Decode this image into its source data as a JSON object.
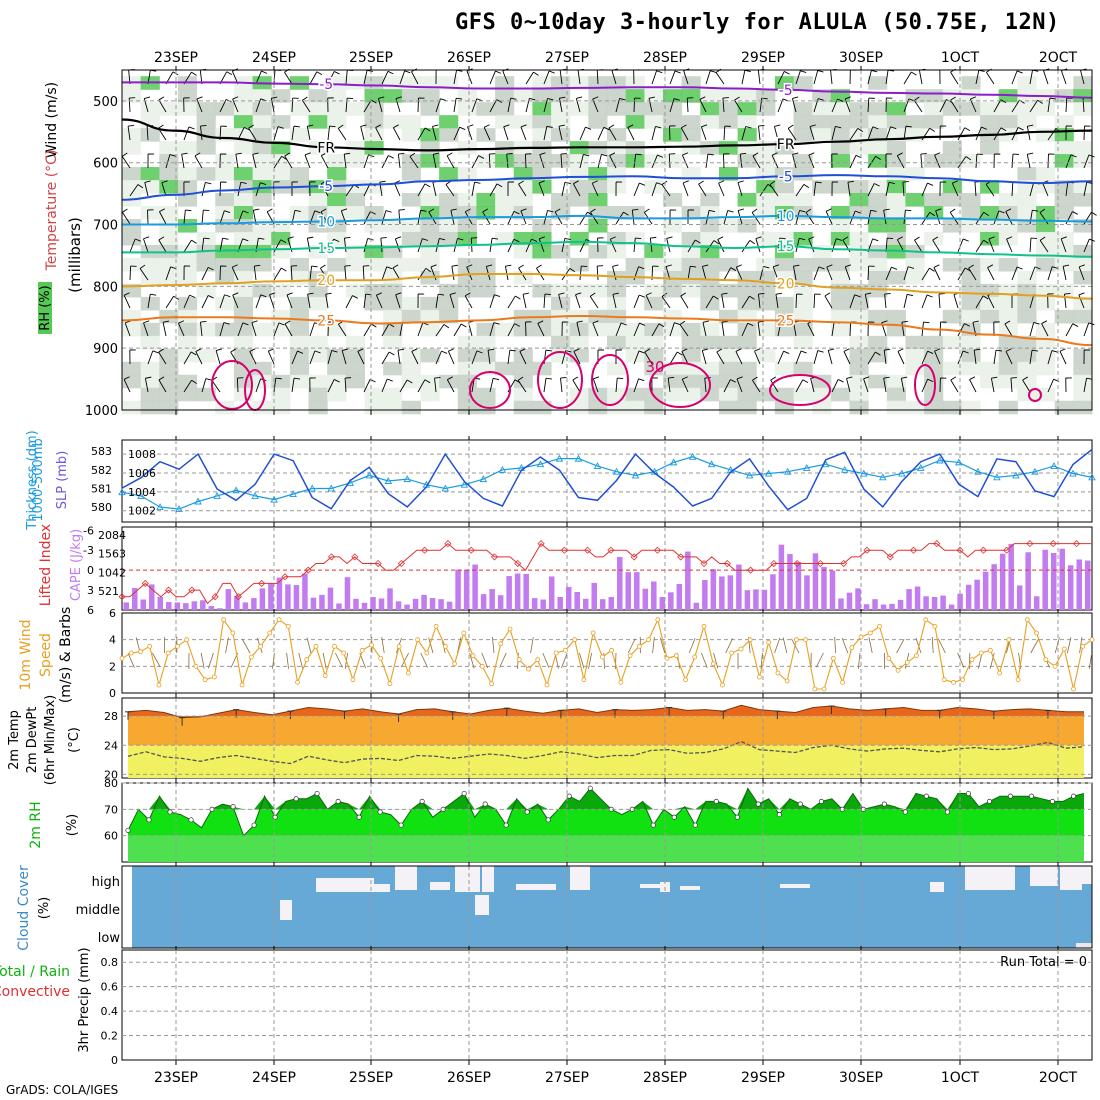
{
  "title": "GFS 0~10day 3-hourly for ALULA (50.75E, 12N)",
  "footer": "GrADS: COLA/IGES",
  "colors": {
    "pink": "#d6006e",
    "purple": "#8a1fc8",
    "blue": "#1f4fd6",
    "lightblue": "#1a9be0",
    "teal": "#12c08c",
    "gold": "#e0a020",
    "orange": "#ec7a1c",
    "grayshade": "#c4cfc4",
    "lightshade": "#e8f0e6",
    "green": "#56c856",
    "cloud": "#66a9d6",
    "rhgreen": "#11e011",
    "rhdark": "#0aa80a",
    "cape": "#c27cf0",
    "li": "#e03030",
    "wind": "#e8a020"
  },
  "chart_data": [
    {
      "type": "heatmap",
      "name": "pressure-time-cross-section",
      "xlabels": [
        "23SEP",
        "24SEP",
        "25SEP",
        "26SEP",
        "27SEP",
        "28SEP",
        "29SEP",
        "30SEP",
        "1OCT",
        "2OCT"
      ],
      "xlabels_display": [
        "23SEP",
        "24SEP",
        "25SEP",
        "26SEP",
        "27SEP",
        "28SEP",
        "29SEP",
        "30SEP",
        "1OCT",
        "2OCT"
      ],
      "ylabel_parts": {
        "wind": "Wind (m/s)",
        "temp": "Temperature (°C)",
        "units": "(millibars)",
        "rh": "RH (%)"
      },
      "yticks": [
        "500",
        "600",
        "700",
        "800",
        "900",
        "1000"
      ],
      "ylim": [
        450,
        1000
      ],
      "contours": [
        {
          "label": "-5",
          "color": "purple",
          "levels": [
            470,
            470,
            470,
            472,
            473,
            475,
            478,
            480,
            480,
            479,
            478,
            478,
            480,
            482,
            485,
            487,
            488,
            490,
            492,
            495
          ]
        },
        {
          "label": "FR",
          "color": "black",
          "levels": [
            530,
            548,
            560,
            568,
            575,
            578,
            580,
            578,
            576,
            575,
            575,
            574,
            572,
            570,
            566,
            562,
            558,
            555,
            550,
            548
          ]
        },
        {
          "label": "-5",
          "color": "blue",
          "levels": [
            660,
            652,
            645,
            640,
            638,
            635,
            630,
            628,
            625,
            623,
            622,
            625,
            625,
            622,
            620,
            622,
            625,
            630,
            633,
            630
          ]
        },
        {
          "label": "10",
          "color": "lightblue",
          "levels": [
            700,
            700,
            698,
            696,
            695,
            693,
            690,
            688,
            688,
            686,
            690,
            690,
            688,
            686,
            688,
            690,
            690,
            692,
            694,
            695
          ]
        },
        {
          "label": "15",
          "color": "teal",
          "levels": [
            745,
            745,
            742,
            740,
            738,
            737,
            735,
            733,
            730,
            728,
            730,
            735,
            738,
            735,
            740,
            742,
            745,
            748,
            750,
            752
          ]
        },
        {
          "label": "20",
          "color": "gold",
          "levels": [
            800,
            798,
            795,
            792,
            790,
            790,
            785,
            780,
            780,
            782,
            785,
            788,
            790,
            795,
            802,
            805,
            810,
            812,
            815,
            820
          ]
        },
        {
          "label": "25",
          "color": "orange",
          "levels": [
            855,
            850,
            850,
            852,
            855,
            860,
            858,
            855,
            850,
            848,
            850,
            852,
            855,
            855,
            858,
            862,
            870,
            878,
            885,
            895
          ]
        },
        {
          "label": "30",
          "color": "pink",
          "levels": []
        }
      ]
    },
    {
      "type": "line",
      "name": "slp-thickness",
      "ylabel_left": "Thickness (dm)",
      "ylabel_right": "SLP (mb)",
      "ylabel_top": "1000-500mb",
      "thickness_ticks": [
        "583",
        "582",
        "581",
        "580"
      ],
      "slp_ticks": [
        "1008",
        "1006",
        "1004",
        "1002"
      ],
      "series": [
        {
          "name": "SLP",
          "color": "blue",
          "values": [
            1004.4,
            1005.5,
            1007.2,
            1006.4,
            1008,
            1004.3,
            1003.1,
            1004.8,
            1008,
            1007.3,
            1003.4,
            1002.2,
            1005.2,
            1006.6,
            1003.8,
            1002.4,
            1004.5,
            1008,
            1005.1,
            1003.3,
            1002.5,
            1006.3,
            1007.7,
            1006.3,
            1003.4,
            1003.1,
            1005.2,
            1008,
            1006,
            1004.5,
            1002.5,
            1003.3,
            1006.1,
            1007.5,
            1004.6,
            1002.1,
            1003.3,
            1007.4,
            1008.2,
            1004.3,
            1002.4,
            1005.1,
            1007.2,
            1008,
            1004.8,
            1003.5,
            1007.5,
            1007.2,
            1004.1,
            1003.5,
            1006.9,
            1008.5
          ]
        },
        {
          "name": "Thickness",
          "color": "lightblue",
          "values": [
            580.8,
            580.6,
            580.0,
            579.9,
            580.3,
            580.6,
            580.9,
            580.6,
            580.4,
            580.7,
            581.0,
            581.0,
            581.3,
            581.7,
            581.4,
            581.5,
            581.2,
            581.0,
            581.2,
            581.5,
            582.0,
            582.1,
            582.3,
            582.6,
            582.6,
            582.2,
            581.9,
            581.7,
            581.9,
            582.4,
            582.7,
            582.3,
            582.0,
            581.7,
            581.8,
            581.9,
            582.1,
            582.3,
            582.0,
            581.8,
            581.6,
            581.8,
            582.1,
            582.5,
            582.4,
            581.9,
            581.6,
            581.7,
            581.9,
            582.2,
            581.8,
            581.6
          ]
        }
      ]
    },
    {
      "type": "bar",
      "name": "cape-lifted-index",
      "ylabel_left": "Lifted Index",
      "ylabel_right": "CAPE (J/kg)",
      "li_ticks": [
        "-6",
        "-3",
        "0",
        "3",
        "6"
      ],
      "cape_ticks": [
        "2084",
        "1563",
        "1042",
        "521"
      ],
      "cape_values": [
        210,
        610,
        290,
        710,
        360,
        220,
        210,
        190,
        240,
        270,
        110,
        50,
        580,
        390,
        210,
        330,
        600,
        730,
        900,
        710,
        690,
        1010,
        340,
        420,
        620,
        180,
        910,
        310,
        200,
        360,
        320,
        600,
        240,
        150,
        310,
        420,
        330,
        300,
        230,
        1120,
        1120,
        1260,
        440,
        580,
        410,
        940,
        1010,
        1000,
        330,
        290,
        930,
        360,
        640,
        500,
        310,
        750,
        300,
        360,
        1470,
        1050,
        1050,
        590,
        790,
        360,
        490,
        720,
        1620,
        200,
        830,
        1130,
        930,
        960,
        1260,
        550,
        570,
        560,
        990,
        1810,
        1550,
        1330,
        960,
        1570,
        1190,
        1090,
        320,
        480,
        600,
        160,
        300,
        150,
        170,
        280,
        580,
        650,
        380,
        360,
        400,
        150,
        450,
        700,
        840,
        1060,
        1270,
        1560,
        1830,
        680,
        1600,
        380,
        1670,
        1580,
        1700,
        1240,
        1400,
        1370
      ],
      "li_values": [
        4,
        4,
        3,
        2,
        3,
        4,
        3,
        4,
        4,
        3,
        3,
        5,
        4,
        2,
        2,
        4,
        3,
        2,
        2,
        2,
        2,
        1,
        1,
        1,
        0,
        -1,
        -1,
        -2,
        -2,
        -1,
        -2,
        -1,
        -1,
        -1,
        0,
        0,
        -1,
        -2,
        -3,
        -3,
        -3,
        -3,
        -4,
        -3,
        -3,
        -3,
        -3,
        -3,
        -2,
        -2,
        -2,
        -1,
        0,
        -2,
        -4,
        -3,
        -3,
        -3,
        -3,
        -3,
        -3,
        -2,
        -2,
        -3,
        -3,
        -3,
        -2,
        -3,
        -3,
        -3,
        -3,
        -3,
        -2,
        -2,
        -2,
        -1,
        -2,
        -1,
        -1,
        0,
        0,
        0,
        0,
        0,
        -1,
        -1,
        -1,
        -1,
        -1,
        -1,
        -1,
        -1,
        -1,
        -1,
        -2,
        -2,
        -3,
        -3,
        -3,
        -2,
        -3,
        -3,
        -3,
        -3,
        -4,
        -4,
        -3,
        -3,
        -3,
        -2,
        -3,
        -3,
        -3,
        -3,
        -3,
        -4,
        -4,
        -4,
        -4,
        -4,
        -4,
        -4,
        -4,
        -4,
        -4,
        -4
      ]
    },
    {
      "type": "line",
      "name": "10m-wind",
      "ylabel": [
        "10m Wind",
        "Speed",
        "(m/s) & Barbs"
      ],
      "yticks": [
        "6",
        "4",
        "2",
        "0"
      ],
      "ylim": [
        0,
        6
      ],
      "values": [
        2.6,
        3.0,
        3.1,
        3.5,
        0.6,
        3.0,
        3.5,
        4.0,
        2.0,
        1.0,
        1.2,
        5.5,
        4.5,
        0.6,
        2.7,
        3.5,
        4.5,
        5.5,
        5.0,
        0.8,
        2.5,
        3.5,
        1.3,
        3.5,
        3.0,
        1.0,
        3.2,
        3.6,
        2.6,
        0.7,
        3.5,
        1.5,
        4.0,
        3.0,
        5.0,
        3.5,
        2.2,
        4.5,
        2.8,
        2.0,
        0.7,
        3.7,
        4.8,
        2.5,
        1.8,
        2.5,
        0.6,
        3.0,
        3.2,
        4.0,
        1.0,
        4.5,
        2.7,
        3.2,
        0.8,
        2.8,
        3.5,
        4.0,
        5.5,
        2.6,
        2.8,
        1.0,
        2.7,
        5.0,
        2.2,
        0.6,
        3.0,
        3.3,
        4.0,
        1.2,
        3.8,
        1.5,
        0.9,
        4.0,
        4.0,
        0.3,
        0.3,
        2.6,
        0.8,
        3.4,
        4.2,
        4.5,
        5.0,
        2.6,
        1.7,
        2.3,
        2.8,
        5.5,
        5.0,
        1.0,
        0.8,
        1.0,
        2.5,
        3.0,
        3.2,
        1.5,
        4.0,
        1.0,
        5.5,
        4.5,
        2.5,
        2.0,
        3.3,
        0.3,
        3.5,
        4.0
      ]
    },
    {
      "type": "area",
      "name": "2m-temperature",
      "ylabel": [
        "2m Temp",
        "2m DewPt",
        "(6hr Min/Max)"
      ],
      "yunit": "(°C)",
      "yticks": [
        "28",
        "24",
        "20"
      ],
      "ylim": [
        19.5,
        30.5
      ],
      "temp": [
        28.6,
        28.8,
        28.5,
        27.8,
        27.9,
        28.4,
        28.9,
        28.5,
        28.2,
        28.7,
        29.2,
        29.0,
        28.7,
        29.0,
        28.6,
        28.3,
        28.9,
        29.0,
        28.6,
        28.3,
        28.8,
        29.1,
        28.7,
        28.4,
        28.8,
        29.0,
        28.5,
        28.9,
        28.8,
        28.9,
        29.2,
        28.8,
        28.9,
        28.7,
        29.5,
        28.9,
        28.7,
        28.5,
        29.2,
        29.4,
        29.0,
        28.8,
        29.0,
        29.2,
        28.8,
        28.8,
        29.2,
        29.0,
        28.7,
        28.9,
        29.0,
        28.8,
        28.6,
        28.6
      ],
      "dewpt": [
        22.5,
        23.1,
        22.4,
        22.2,
        21.8,
        22.3,
        22.6,
        22.2,
        21.8,
        21.5,
        22.5,
        22.0,
        21.6,
        22.1,
        22.2,
        21.9,
        22.6,
        22.5,
        22.2,
        22.5,
        22.8,
        22.6,
        22.2,
        22.6,
        23.1,
        22.8,
        22.3,
        22.6,
        22.6,
        23.3,
        23.4,
        22.9,
        23.0,
        23.5,
        24.5,
        23.4,
        23.2,
        23.0,
        23.7,
        24.0,
        23.5,
        23.2,
        23.5,
        23.6,
        23.3,
        23.1,
        23.5,
        23.7,
        23.4,
        23.5,
        23.9,
        24.4,
        23.6,
        23.8
      ]
    },
    {
      "type": "area",
      "name": "2m-rh",
      "ylabel": "2m RH",
      "yunit": "(%)",
      "yticks": [
        "80",
        "70",
        "60"
      ],
      "ylim": [
        50,
        80
      ],
      "values": [
        62,
        70,
        66,
        75,
        69,
        68,
        66,
        63,
        70,
        72,
        71,
        60,
        64,
        75,
        67,
        73,
        74,
        74,
        76,
        70,
        73,
        72,
        67,
        75,
        69,
        68,
        64,
        70,
        73,
        67,
        70,
        73,
        76,
        67,
        72,
        70,
        64,
        74,
        69,
        72,
        66,
        70,
        75,
        73,
        78,
        74,
        70,
        68,
        70,
        73,
        64,
        70,
        67,
        71,
        64,
        73,
        73,
        72,
        67,
        78,
        72,
        74,
        68,
        74,
        72,
        70,
        73,
        74,
        70,
        76,
        70,
        71,
        72,
        71,
        69,
        76,
        75,
        74,
        69,
        76,
        76,
        71,
        73,
        75,
        75,
        75,
        75,
        74,
        73,
        73,
        75,
        76
      ]
    },
    {
      "type": "heatmap",
      "name": "cloud-cover",
      "ylabel": "Cloud Cover",
      "yunit": "(%)",
      "ylevels": [
        "high",
        "middle",
        "low"
      ]
    },
    {
      "type": "bar",
      "name": "precipitation",
      "ylabel": "3hr Precip (mm)",
      "legend": [
        "Total / Rain",
        "Convective"
      ],
      "yticks": [
        "0.8",
        "0.6",
        "0.4",
        "0.2",
        "0"
      ],
      "ylim": [
        0,
        0.9
      ],
      "annotation": "Run Total = 0",
      "values": []
    }
  ]
}
